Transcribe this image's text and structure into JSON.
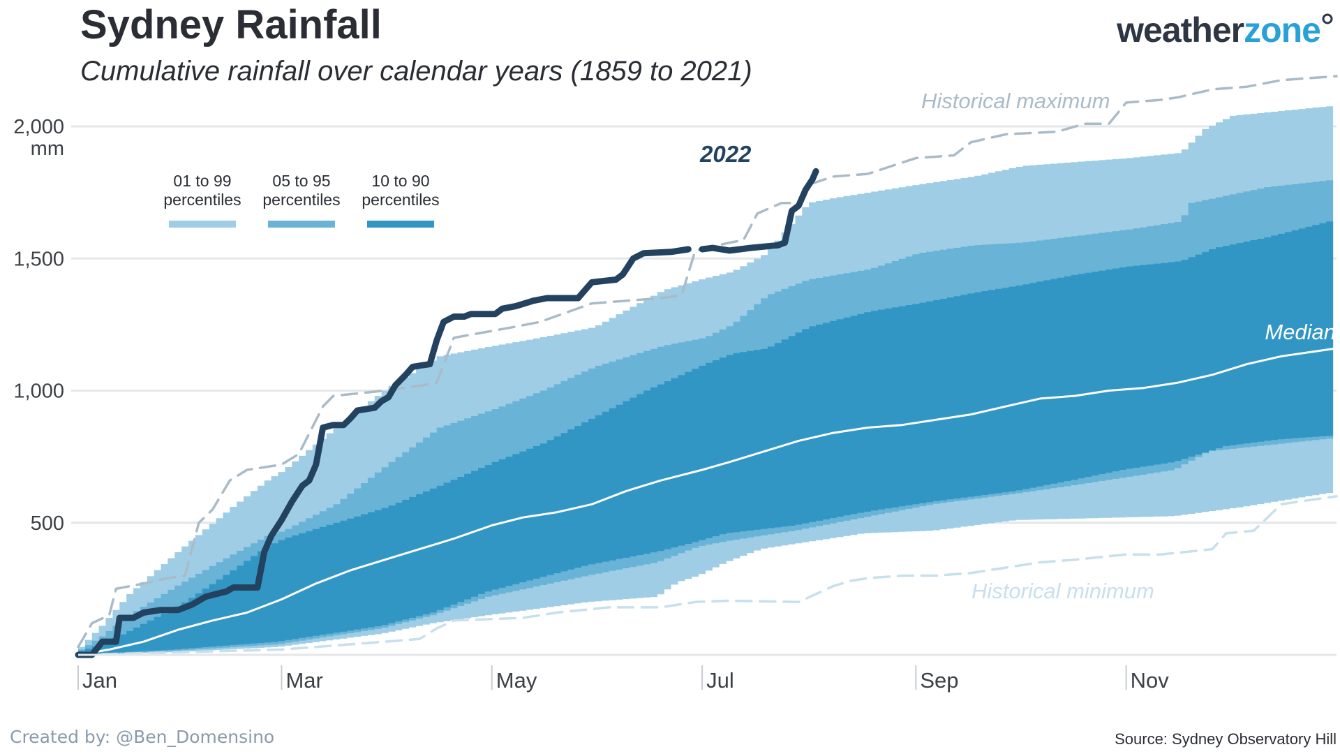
{
  "header": {
    "title": "Sydney Rainfall",
    "subtitle": "Cumulative rainfall over calendar years (1859 to 2021)"
  },
  "logo": {
    "part1": "weather",
    "part2": "zone"
  },
  "footer": {
    "credit": "Created by: @Ben_Domensino",
    "source": "Source: Sydney Observatory Hill"
  },
  "colors": {
    "band_01_99": "#9ecde5",
    "band_05_95": "#69b3d7",
    "band_10_90": "#3296c5",
    "line_2022": "#23425f",
    "median": "#ffffff",
    "historical_max": "#aabbc8",
    "historical_min": "#c8dfec"
  },
  "chart_data": {
    "type": "area",
    "y_unit": "mm",
    "ylim": [
      0,
      2100
    ],
    "y_ticks": [
      {
        "value": 500,
        "label": "500"
      },
      {
        "value": 1000,
        "label": "1,000"
      },
      {
        "value": 1500,
        "label": "1,500"
      },
      {
        "value": 2000,
        "label": "2,000"
      }
    ],
    "xlim": [
      1,
      366
    ],
    "x_unit": "day of year",
    "months": [
      {
        "label": "Jan",
        "day": 1
      },
      {
        "label": "Mar",
        "day": 60
      },
      {
        "label": "May",
        "day": 121
      },
      {
        "label": "Jul",
        "day": 182
      },
      {
        "label": "Sep",
        "day": 244
      },
      {
        "label": "Nov",
        "day": 305
      }
    ],
    "grid": true,
    "legend": {
      "placement": "top-left",
      "entries": [
        {
          "label_line1": "01 to 99",
          "label_line2": "percentiles",
          "color": "#9ecde5"
        },
        {
          "label_line1": "05 to 95",
          "label_line2": "percentiles",
          "color": "#69b3d7"
        },
        {
          "label_line1": "10 to 90",
          "label_line2": "percentiles",
          "color": "#3296c5"
        }
      ]
    },
    "annotations": {
      "historical_maximum": "Historical maximum",
      "historical_minimum": "Historical minimum",
      "median": "Median",
      "year_label": "2022"
    },
    "series": {
      "p01_99": {
        "upper": [
          [
            1,
            30
          ],
          [
            7,
            110
          ],
          [
            15,
            230
          ],
          [
            30,
            400
          ],
          [
            45,
            560
          ],
          [
            55,
            660
          ],
          [
            60,
            700
          ],
          [
            75,
            860
          ],
          [
            90,
            1010
          ],
          [
            105,
            1130
          ],
          [
            121,
            1170
          ],
          [
            130,
            1190
          ],
          [
            150,
            1240
          ],
          [
            170,
            1380
          ],
          [
            182,
            1425
          ],
          [
            190,
            1450
          ],
          [
            200,
            1520
          ],
          [
            212,
            1710
          ],
          [
            220,
            1730
          ],
          [
            244,
            1780
          ],
          [
            260,
            1810
          ],
          [
            274,
            1850
          ],
          [
            305,
            1880
          ],
          [
            320,
            1900
          ],
          [
            327,
            1990
          ],
          [
            335,
            2040
          ],
          [
            366,
            2080
          ]
        ],
        "lower": [
          [
            1,
            0
          ],
          [
            30,
            10
          ],
          [
            60,
            30
          ],
          [
            90,
            80
          ],
          [
            105,
            120
          ],
          [
            121,
            150
          ],
          [
            150,
            200
          ],
          [
            170,
            220
          ],
          [
            176,
            275
          ],
          [
            182,
            300
          ],
          [
            190,
            350
          ],
          [
            200,
            400
          ],
          [
            230,
            460
          ],
          [
            250,
            470
          ],
          [
            274,
            510
          ],
          [
            290,
            515
          ],
          [
            305,
            520
          ],
          [
            320,
            525
          ],
          [
            340,
            560
          ],
          [
            366,
            615
          ]
        ]
      },
      "p05_95": {
        "upper": [
          [
            1,
            20
          ],
          [
            7,
            70
          ],
          [
            15,
            150
          ],
          [
            30,
            270
          ],
          [
            45,
            380
          ],
          [
            55,
            450
          ],
          [
            60,
            470
          ],
          [
            75,
            570
          ],
          [
            90,
            720
          ],
          [
            105,
            860
          ],
          [
            121,
            930
          ],
          [
            135,
            1000
          ],
          [
            150,
            1090
          ],
          [
            170,
            1170
          ],
          [
            182,
            1200
          ],
          [
            190,
            1250
          ],
          [
            200,
            1360
          ],
          [
            212,
            1420
          ],
          [
            230,
            1460
          ],
          [
            244,
            1520
          ],
          [
            260,
            1550
          ],
          [
            274,
            1560
          ],
          [
            305,
            1610
          ],
          [
            320,
            1640
          ],
          [
            323,
            1710
          ],
          [
            345,
            1770
          ],
          [
            366,
            1800
          ]
        ],
        "lower": [
          [
            1,
            0
          ],
          [
            30,
            15
          ],
          [
            60,
            40
          ],
          [
            90,
            100
          ],
          [
            105,
            150
          ],
          [
            121,
            220
          ],
          [
            150,
            300
          ],
          [
            170,
            350
          ],
          [
            182,
            410
          ],
          [
            190,
            430
          ],
          [
            210,
            470
          ],
          [
            230,
            520
          ],
          [
            250,
            570
          ],
          [
            274,
            610
          ],
          [
            290,
            640
          ],
          [
            305,
            670
          ],
          [
            320,
            700
          ],
          [
            330,
            770
          ],
          [
            366,
            820
          ]
        ]
      },
      "p10_90": {
        "upper": [
          [
            1,
            15
          ],
          [
            7,
            40
          ],
          [
            15,
            90
          ],
          [
            30,
            190
          ],
          [
            45,
            320
          ],
          [
            55,
            410
          ],
          [
            60,
            440
          ],
          [
            75,
            500
          ],
          [
            90,
            560
          ],
          [
            105,
            640
          ],
          [
            121,
            730
          ],
          [
            135,
            800
          ],
          [
            150,
            900
          ],
          [
            165,
            1000
          ],
          [
            182,
            1100
          ],
          [
            190,
            1140
          ],
          [
            200,
            1160
          ],
          [
            212,
            1240
          ],
          [
            230,
            1300
          ],
          [
            244,
            1330
          ],
          [
            260,
            1370
          ],
          [
            274,
            1400
          ],
          [
            290,
            1440
          ],
          [
            305,
            1470
          ],
          [
            320,
            1490
          ],
          [
            330,
            1540
          ],
          [
            345,
            1580
          ],
          [
            366,
            1650
          ]
        ],
        "lower": [
          [
            1,
            0
          ],
          [
            30,
            20
          ],
          [
            60,
            50
          ],
          [
            90,
            110
          ],
          [
            105,
            160
          ],
          [
            121,
            240
          ],
          [
            150,
            340
          ],
          [
            170,
            390
          ],
          [
            182,
            430
          ],
          [
            190,
            460
          ],
          [
            210,
            490
          ],
          [
            230,
            540
          ],
          [
            250,
            580
          ],
          [
            274,
            620
          ],
          [
            290,
            660
          ],
          [
            305,
            700
          ],
          [
            320,
            730
          ],
          [
            335,
            790
          ],
          [
            350,
            815
          ],
          [
            366,
            830
          ]
        ]
      },
      "median": [
        [
          1,
          0
        ],
        [
          10,
          20
        ],
        [
          20,
          50
        ],
        [
          30,
          95
        ],
        [
          40,
          130
        ],
        [
          50,
          160
        ],
        [
          60,
          210
        ],
        [
          70,
          270
        ],
        [
          80,
          320
        ],
        [
          90,
          360
        ],
        [
          100,
          400
        ],
        [
          110,
          440
        ],
        [
          121,
          490
        ],
        [
          130,
          520
        ],
        [
          140,
          540
        ],
        [
          150,
          570
        ],
        [
          160,
          620
        ],
        [
          170,
          660
        ],
        [
          182,
          700
        ],
        [
          190,
          730
        ],
        [
          200,
          770
        ],
        [
          210,
          810
        ],
        [
          220,
          840
        ],
        [
          230,
          860
        ],
        [
          240,
          870
        ],
        [
          250,
          890
        ],
        [
          260,
          910
        ],
        [
          270,
          940
        ],
        [
          280,
          970
        ],
        [
          290,
          980
        ],
        [
          300,
          1000
        ],
        [
          310,
          1010
        ],
        [
          320,
          1030
        ],
        [
          330,
          1060
        ],
        [
          340,
          1100
        ],
        [
          350,
          1130
        ],
        [
          366,
          1160
        ]
      ],
      "historical_max": [
        [
          1,
          30
        ],
        [
          5,
          120
        ],
        [
          10,
          150
        ],
        [
          12,
          250
        ],
        [
          20,
          270
        ],
        [
          27,
          290
        ],
        [
          32,
          300
        ],
        [
          36,
          500
        ],
        [
          40,
          550
        ],
        [
          45,
          660
        ],
        [
          50,
          700
        ],
        [
          60,
          720
        ],
        [
          65,
          760
        ],
        [
          72,
          940
        ],
        [
          75,
          980
        ],
        [
          90,
          1000
        ],
        [
          101,
          1020
        ],
        [
          105,
          1030
        ],
        [
          110,
          1200
        ],
        [
          127,
          1240
        ],
        [
          135,
          1260
        ],
        [
          150,
          1330
        ],
        [
          170,
          1350
        ],
        [
          176,
          1360
        ],
        [
          180,
          1530
        ],
        [
          190,
          1560
        ],
        [
          194,
          1570
        ],
        [
          198,
          1670
        ],
        [
          205,
          1710
        ],
        [
          210,
          1710
        ],
        [
          213,
          1780
        ],
        [
          220,
          1810
        ],
        [
          230,
          1820
        ],
        [
          244,
          1880
        ],
        [
          255,
          1890
        ],
        [
          260,
          1940
        ],
        [
          270,
          1970
        ],
        [
          285,
          1980
        ],
        [
          293,
          2010
        ],
        [
          300,
          2010
        ],
        [
          305,
          2090
        ],
        [
          315,
          2100
        ],
        [
          320,
          2110
        ],
        [
          330,
          2140
        ],
        [
          340,
          2150
        ],
        [
          350,
          2175
        ],
        [
          366,
          2190
        ]
      ],
      "historical_min": [
        [
          1,
          0
        ],
        [
          60,
          20
        ],
        [
          80,
          40
        ],
        [
          100,
          60
        ],
        [
          105,
          100
        ],
        [
          110,
          130
        ],
        [
          130,
          140
        ],
        [
          140,
          160
        ],
        [
          155,
          180
        ],
        [
          170,
          180
        ],
        [
          180,
          200
        ],
        [
          190,
          205
        ],
        [
          210,
          200
        ],
        [
          220,
          260
        ],
        [
          225,
          280
        ],
        [
          230,
          290
        ],
        [
          240,
          300
        ],
        [
          250,
          300
        ],
        [
          260,
          310
        ],
        [
          270,
          330
        ],
        [
          280,
          350
        ],
        [
          290,
          360
        ],
        [
          305,
          380
        ],
        [
          315,
          380
        ],
        [
          330,
          400
        ],
        [
          334,
          460
        ],
        [
          342,
          470
        ],
        [
          350,
          570
        ],
        [
          355,
          580
        ],
        [
          366,
          600
        ]
      ],
      "year_2022": [
        [
          1,
          0
        ],
        [
          5,
          0
        ],
        [
          8,
          50
        ],
        [
          12,
          50
        ],
        [
          13,
          140
        ],
        [
          17,
          140
        ],
        [
          20,
          160
        ],
        [
          25,
          170
        ],
        [
          30,
          170
        ],
        [
          34,
          190
        ],
        [
          38,
          220
        ],
        [
          41,
          230
        ],
        [
          44,
          240
        ],
        [
          46,
          255
        ],
        [
          53,
          255
        ],
        [
          55,
          390
        ],
        [
          57,
          450
        ],
        [
          60,
          510
        ],
        [
          63,
          580
        ],
        [
          66,
          640
        ],
        [
          68,
          660
        ],
        [
          70,
          720
        ],
        [
          72,
          860
        ],
        [
          75,
          870
        ],
        [
          78,
          870
        ],
        [
          80,
          895
        ],
        [
          82,
          925
        ],
        [
          87,
          935
        ],
        [
          89,
          960
        ],
        [
          91,
          975
        ],
        [
          93,
          1020
        ],
        [
          96,
          1060
        ],
        [
          98,
          1090
        ],
        [
          103,
          1100
        ],
        [
          105,
          1190
        ],
        [
          107,
          1260
        ],
        [
          110,
          1280
        ],
        [
          113,
          1280
        ],
        [
          115,
          1290
        ],
        [
          122,
          1290
        ],
        [
          124,
          1310
        ],
        [
          128,
          1320
        ],
        [
          133,
          1340
        ],
        [
          137,
          1350
        ],
        [
          146,
          1350
        ],
        [
          148,
          1380
        ],
        [
          150,
          1410
        ],
        [
          157,
          1420
        ],
        [
          159,
          1440
        ],
        [
          162,
          1500
        ],
        [
          165,
          1520
        ],
        [
          173,
          1525
        ],
        [
          178,
          1535
        ],
        [
          182,
          1535
        ],
        [
          185,
          1540
        ],
        [
          190,
          1530
        ],
        [
          196,
          1540
        ],
        [
          200,
          1545
        ],
        [
          204,
          1550
        ],
        [
          206,
          1560
        ],
        [
          208,
          1680
        ],
        [
          210,
          1700
        ],
        [
          212,
          1760
        ],
        [
          214,
          1800
        ],
        [
          215,
          1830
        ]
      ]
    }
  }
}
